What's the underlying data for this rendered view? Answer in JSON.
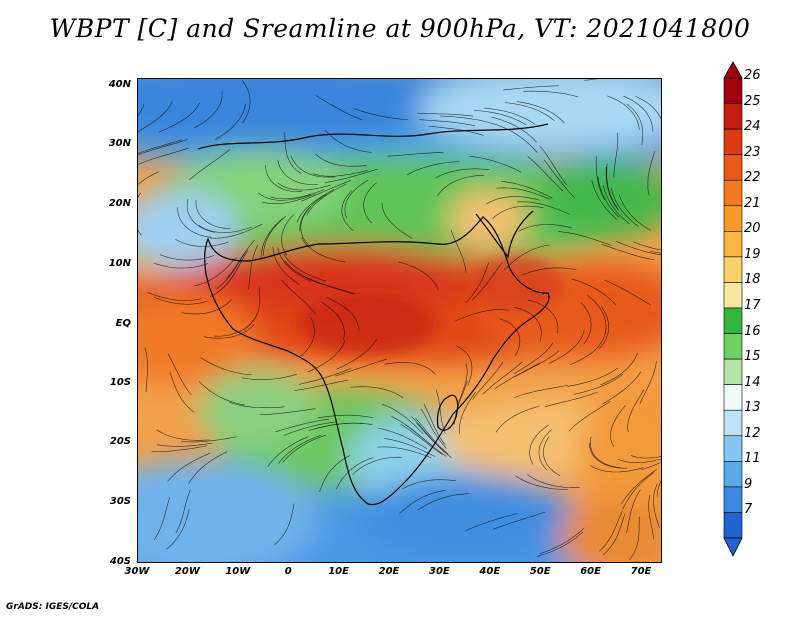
{
  "title": "WBPT [C] and Sreamline at 900hPa, VT: 2021041800",
  "credit": "GrADS: IGES/COLA",
  "map": {
    "variable": "wet-bulb potential temperature",
    "units": "C",
    "level": "900hPa",
    "valid_time": "2021041800",
    "lon_range": [
      -30,
      75
    ],
    "lat_range": [
      -40,
      45
    ],
    "lat_ticks": [
      "40N",
      "30N",
      "20N",
      "10N",
      "EQ",
      "10S",
      "20S",
      "30S",
      "40S"
    ],
    "lon_ticks": [
      "30W",
      "20W",
      "10W",
      "0",
      "10E",
      "20E",
      "30E",
      "40E",
      "50E",
      "60E",
      "70E"
    ]
  },
  "colorbar": {
    "labels": [
      "26",
      "25",
      "24",
      "23",
      "22",
      "21",
      "20",
      "19",
      "18",
      "17",
      "16",
      "15",
      "14",
      "13",
      "12",
      "11",
      "9",
      "7"
    ],
    "colors": [
      "#a50010",
      "#c81a0e",
      "#dc3a10",
      "#ec5818",
      "#f47a1c",
      "#f79a28",
      "#f8b640",
      "#fad06a",
      "#f4e8a0",
      "#2fb83a",
      "#6fcf62",
      "#b2e6a2",
      "#eefaf8",
      "#bde3f8",
      "#86c8f2",
      "#5aaaea",
      "#3a88df",
      "#1e64d2"
    ]
  }
}
